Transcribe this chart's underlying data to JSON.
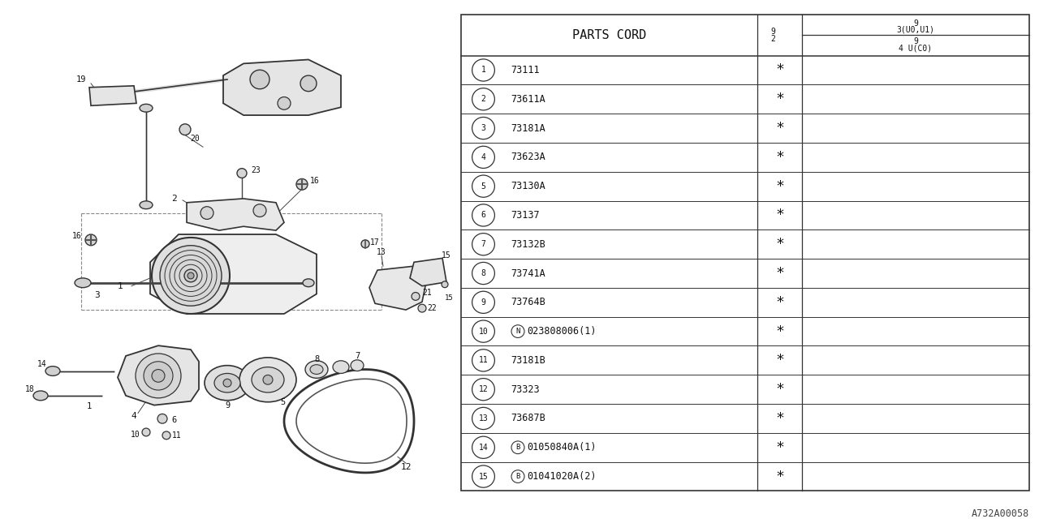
{
  "bg_color": "#ffffff",
  "footer": "A732A00058",
  "parts": [
    [
      "1",
      "73111",
      false,
      ""
    ],
    [
      "2",
      "73611A",
      false,
      ""
    ],
    [
      "3",
      "73181A",
      false,
      ""
    ],
    [
      "4",
      "73623A",
      false,
      ""
    ],
    [
      "5",
      "73130A",
      false,
      ""
    ],
    [
      "6",
      "73137",
      false,
      ""
    ],
    [
      "7",
      "73132B",
      false,
      ""
    ],
    [
      "8",
      "73741A",
      false,
      ""
    ],
    [
      "9",
      "73764B",
      false,
      ""
    ],
    [
      "10",
      "023808006(1)",
      true,
      "N"
    ],
    [
      "11",
      "73181B",
      false,
      ""
    ],
    [
      "12",
      "73323",
      false,
      ""
    ],
    [
      "13",
      "73687B",
      false,
      ""
    ],
    [
      "14",
      "01050840A(1)",
      true,
      "B"
    ],
    [
      "15",
      "01041020A(2)",
      true,
      "B"
    ]
  ]
}
